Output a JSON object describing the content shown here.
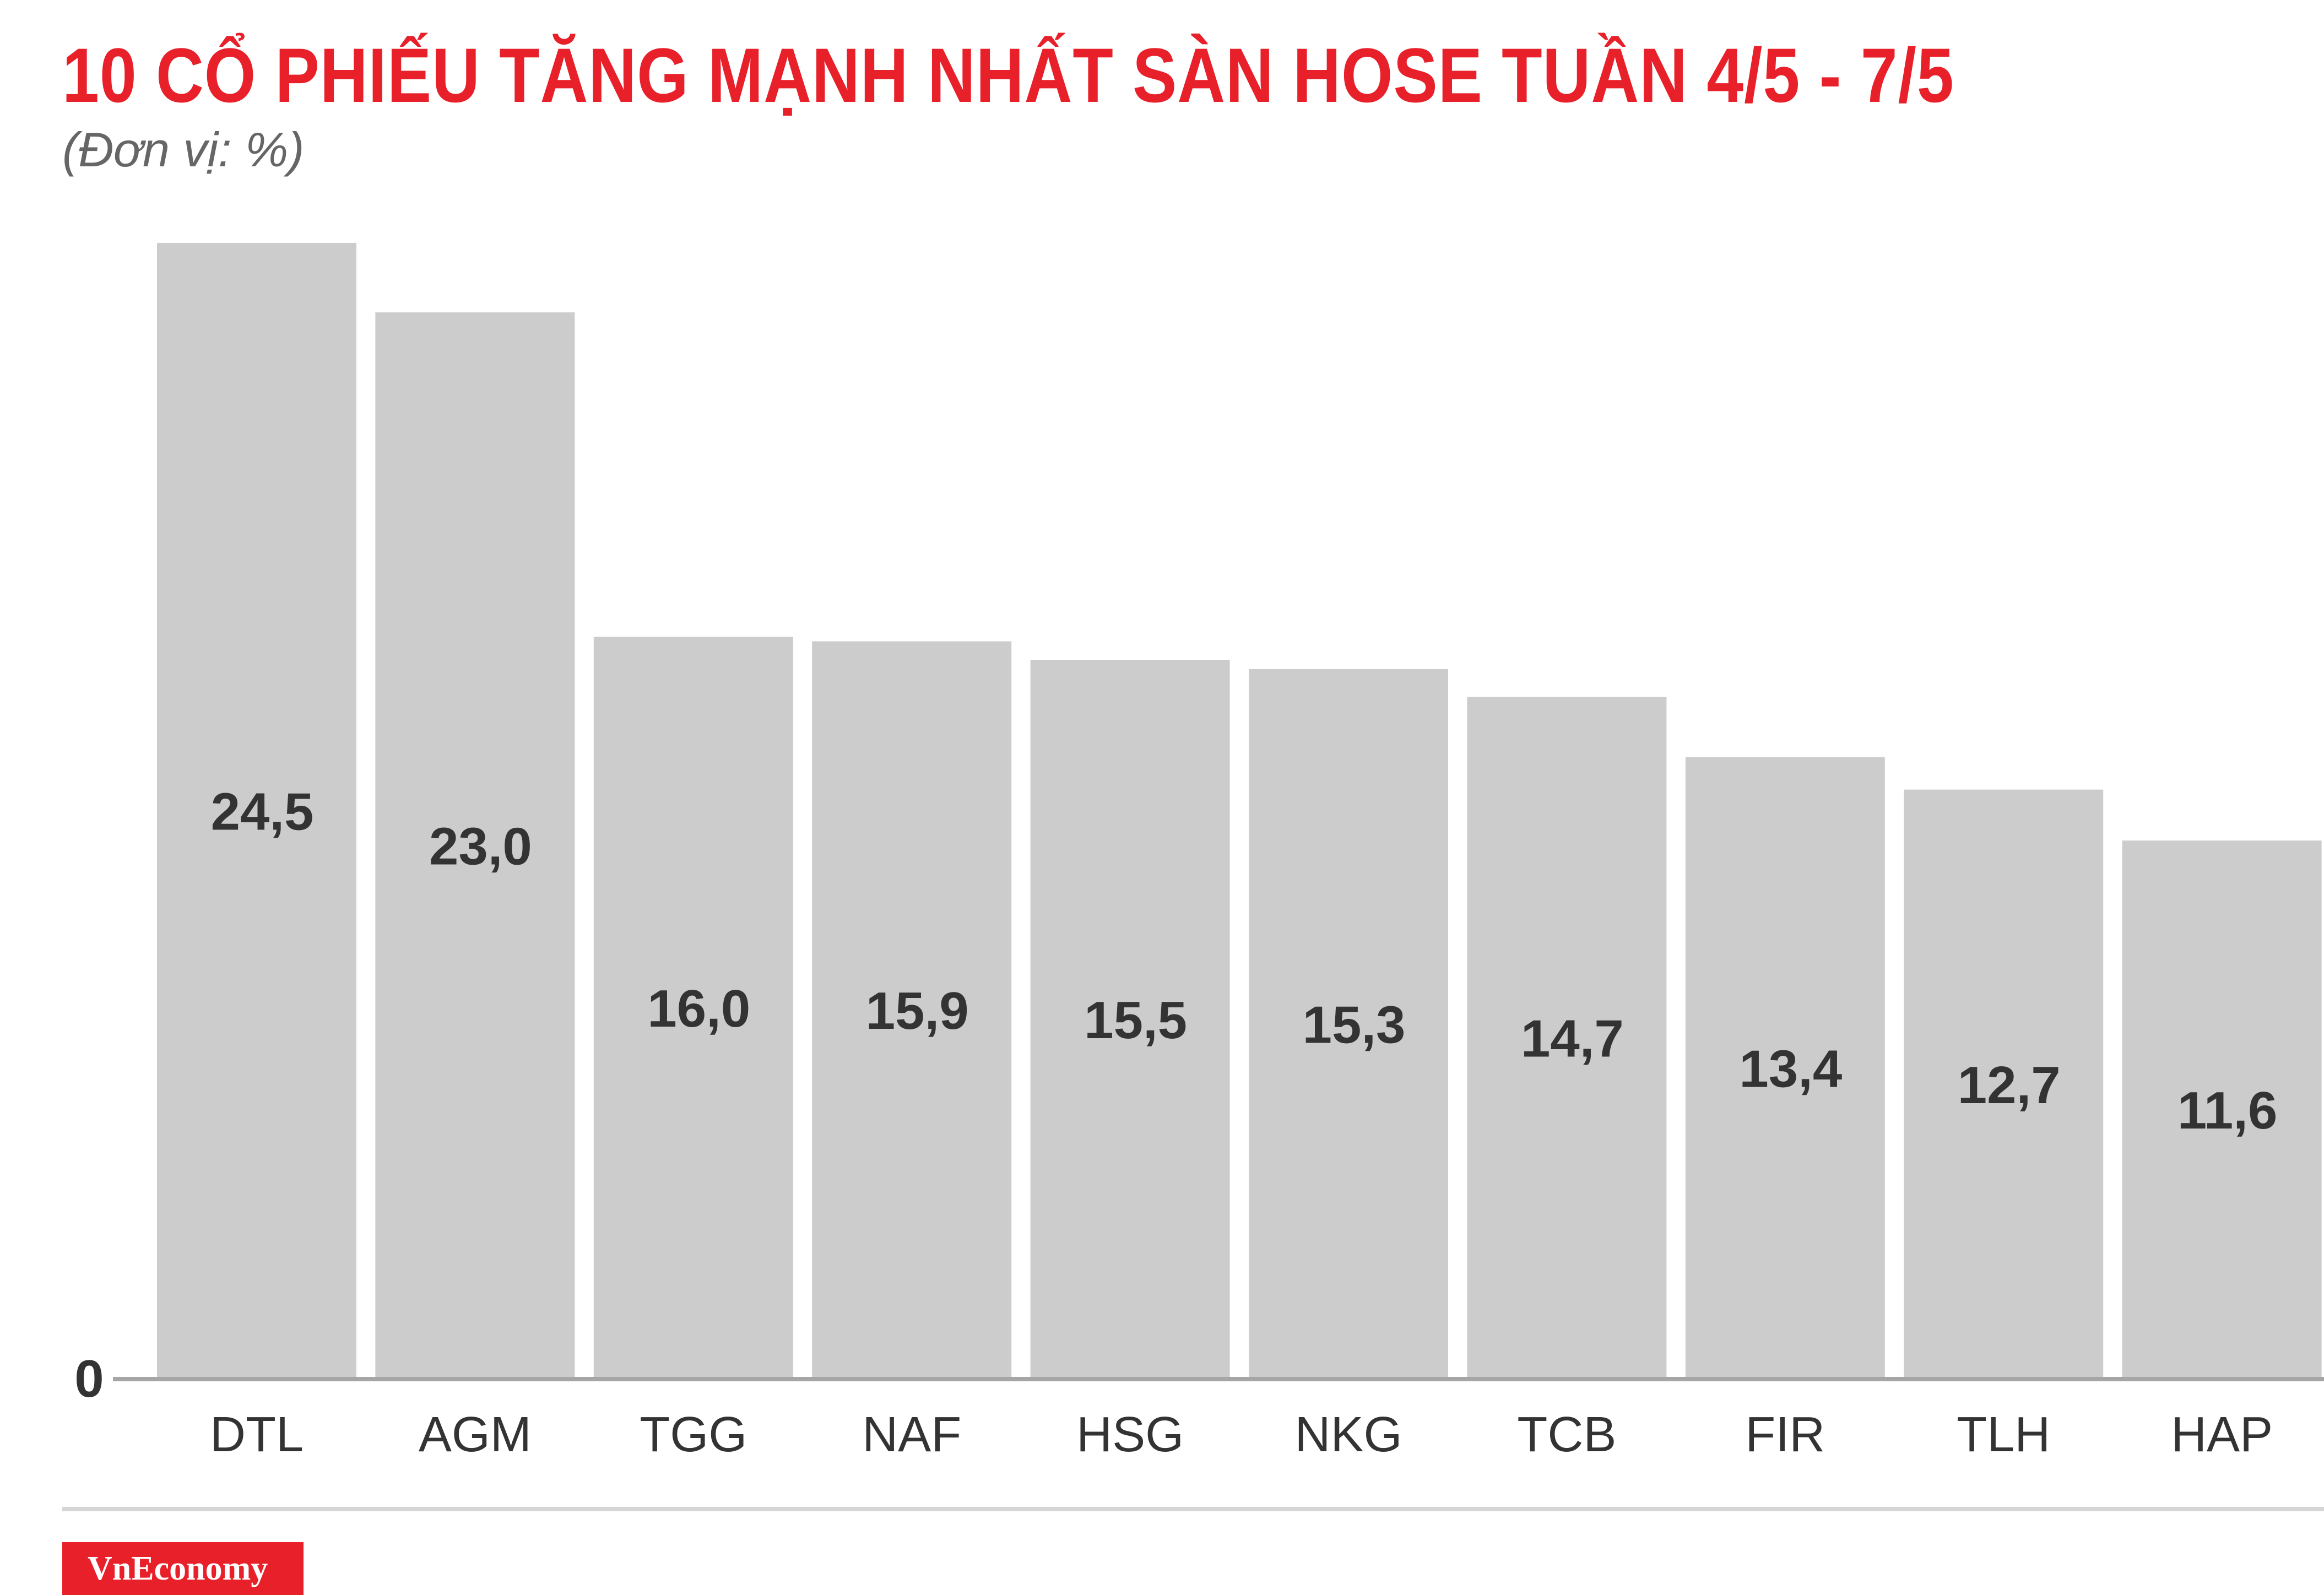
{
  "header": {
    "title": "10 CỔ PHIẾU TĂNG MẠNH NHẤT SÀN HOSE TUẦN 4/5 - 7/5",
    "subtitle": "(Đơn vị: %)"
  },
  "chart_data": {
    "type": "bar",
    "categories": [
      "DTL",
      "AGM",
      "TGG",
      "NAF",
      "HSG",
      "NKG",
      "TCB",
      "FIR",
      "TLH",
      "HAP"
    ],
    "values": [
      24.5,
      23.0,
      16.0,
      15.9,
      15.5,
      15.3,
      14.7,
      13.4,
      12.7,
      11.6
    ],
    "value_labels": [
      "24,5",
      "23,0",
      "16,0",
      "15,9",
      "15,5",
      "15,3",
      "14,7",
      "13,4",
      "12,7",
      "11,6"
    ],
    "y_tick_labels": [
      "0"
    ],
    "ylim": [
      0,
      24.5
    ],
    "grid": false,
    "bar_color": "#cccccc",
    "label_color": "#333333"
  },
  "footer": {
    "logo_text": "VnEconomy",
    "brand_color": "#e8202a"
  }
}
